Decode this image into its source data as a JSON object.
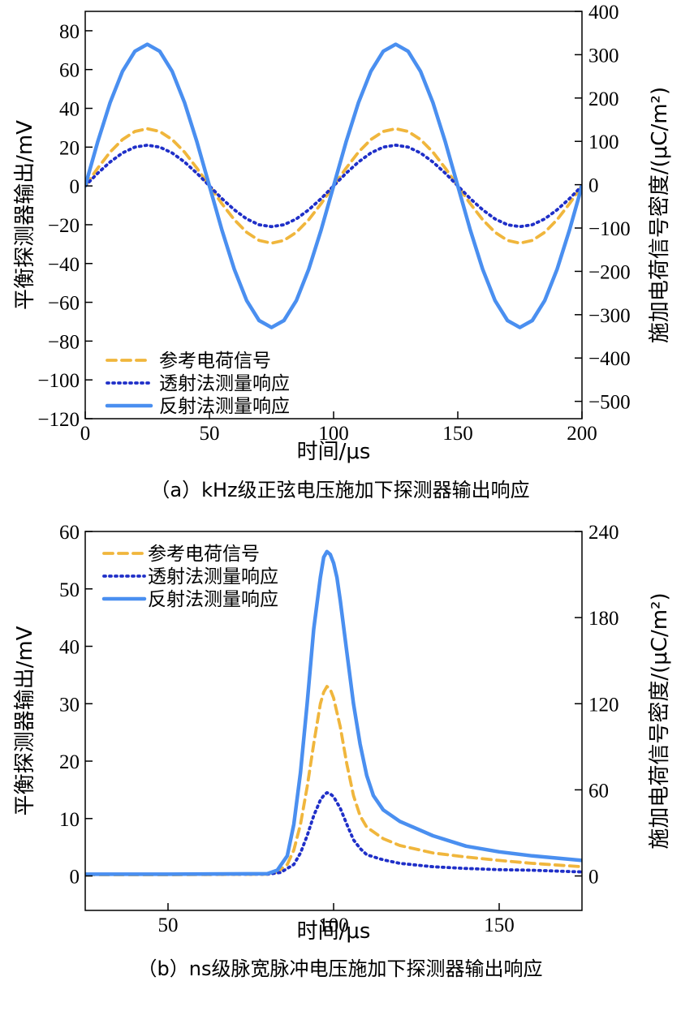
{
  "colors": {
    "reference": "#f0b63c",
    "transmission": "#1f2fc8",
    "reflection": "#4a8ff0"
  },
  "chart_data": [
    {
      "type": "line",
      "caption": "（a）kHz级正弦电压施加下探测器输出响应",
      "xlabel": "时间/μs",
      "ylabel": "平衡探测器输出/mV",
      "y2label": "施加电荷信号密度/(μC/m²)",
      "xlim": [
        0,
        200
      ],
      "ylim": [
        -120,
        90
      ],
      "y2lim": [
        -540,
        400
      ],
      "xticks": [
        0,
        50,
        100,
        150,
        200
      ],
      "yticks": [
        80,
        60,
        40,
        20,
        0,
        -20,
        -40,
        -60,
        -80,
        -100,
        -120
      ],
      "yticklabels": [
        "80",
        "60",
        "40",
        "20",
        "0",
        "−20",
        "−40",
        "−60",
        "−80",
        "−100",
        "−120"
      ],
      "y2ticks": [
        400,
        300,
        200,
        100,
        0,
        -100,
        -200,
        -300,
        -400,
        -500
      ],
      "y2ticklabels": [
        "400",
        "300",
        "200",
        "100",
        "0",
        "−100",
        "−200",
        "−300",
        "−400",
        "−500"
      ],
      "legend_position": "lower-left",
      "series": [
        {
          "name": "参考电荷信号",
          "style": "dashed",
          "axis": "left",
          "x": [
            0,
            5,
            10,
            15,
            20,
            25,
            30,
            35,
            40,
            45,
            50,
            55,
            60,
            65,
            70,
            75,
            80,
            85,
            90,
            95,
            100,
            105,
            110,
            115,
            120,
            125,
            130,
            135,
            140,
            145,
            150,
            155,
            160,
            165,
            170,
            175,
            180,
            185,
            190,
            195,
            200
          ],
          "y": [
            0,
            9.1,
            17.4,
            23.9,
            28.1,
            29.5,
            28.1,
            23.9,
            17.4,
            9.1,
            0,
            -9.1,
            -17.4,
            -23.9,
            -28.1,
            -29.5,
            -28.1,
            -23.9,
            -17.4,
            -9.1,
            0,
            9.1,
            17.4,
            23.9,
            28.1,
            29.5,
            28.1,
            23.9,
            17.4,
            9.1,
            0,
            -9.1,
            -17.4,
            -23.9,
            -28.1,
            -29.5,
            -28.1,
            -23.9,
            -17.4,
            -9.1,
            0
          ]
        },
        {
          "name": "透射法测量响应",
          "style": "dotted",
          "axis": "left",
          "x": [
            0,
            5,
            10,
            15,
            20,
            25,
            30,
            35,
            40,
            45,
            50,
            55,
            60,
            65,
            70,
            75,
            80,
            85,
            90,
            95,
            100,
            105,
            110,
            115,
            120,
            125,
            130,
            135,
            140,
            145,
            150,
            155,
            160,
            165,
            170,
            175,
            180,
            185,
            190,
            195,
            200
          ],
          "y": [
            0,
            6.5,
            12.3,
            17,
            20,
            21,
            20,
            17,
            12.3,
            6.5,
            0,
            -6.5,
            -12.3,
            -17,
            -20,
            -21,
            -20,
            -17,
            -12.3,
            -6.5,
            0,
            6.5,
            12.3,
            17,
            20,
            21,
            20,
            17,
            12.3,
            6.5,
            0,
            -6.5,
            -12.3,
            -17,
            -20,
            -21,
            -20,
            -17,
            -12.3,
            -6.5,
            0
          ]
        },
        {
          "name": "反射法测量响应",
          "style": "solid",
          "axis": "left",
          "x": [
            0,
            5,
            10,
            15,
            20,
            25,
            30,
            35,
            40,
            45,
            50,
            55,
            60,
            65,
            70,
            75,
            80,
            85,
            90,
            95,
            100,
            105,
            110,
            115,
            120,
            125,
            130,
            135,
            140,
            145,
            150,
            155,
            160,
            165,
            170,
            175,
            180,
            185,
            190,
            195,
            200
          ],
          "y": [
            0,
            22.6,
            42.9,
            59.1,
            69.4,
            73,
            69.4,
            59.1,
            42.9,
            22.6,
            0,
            -22.6,
            -42.9,
            -59.1,
            -69.4,
            -73,
            -69.4,
            -59.1,
            -42.9,
            -22.6,
            0,
            22.6,
            42.9,
            59.1,
            69.4,
            73,
            69.4,
            59.1,
            42.9,
            22.6,
            0,
            -22.6,
            -42.9,
            -59.1,
            -69.4,
            -73,
            -69.4,
            -59.1,
            -42.9,
            -22.6,
            0
          ]
        }
      ]
    },
    {
      "type": "line",
      "caption": "（b）ns级脉宽脉冲电压施加下探测器输出响应",
      "xlabel": "时间/μs",
      "ylabel": "平衡探测器输出/mV",
      "y2label": "施加电荷信号密度/(μC/m²)",
      "xlim": [
        25,
        175
      ],
      "ylim": [
        -6,
        60
      ],
      "y2lim": [
        -24,
        240
      ],
      "xticks": [
        50,
        100,
        150
      ],
      "yticks": [
        60,
        50,
        40,
        30,
        20,
        10,
        0
      ],
      "yticklabels": [
        "60",
        "50",
        "40",
        "30",
        "20",
        "10",
        "0"
      ],
      "y2ticks": [
        240,
        180,
        120,
        60,
        0
      ],
      "y2ticklabels": [
        "240",
        "180",
        "120",
        "60",
        "0"
      ],
      "legend_position": "top-left",
      "series": [
        {
          "name": "参考电荷信号",
          "style": "dashed",
          "axis": "left",
          "x": [
            25,
            50,
            80,
            83,
            86,
            88,
            90,
            92,
            94,
            96,
            97,
            98,
            99,
            100,
            102,
            104,
            106,
            108,
            110,
            115,
            120,
            130,
            140,
            150,
            160,
            175
          ],
          "y": [
            0.2,
            0.2,
            0.3,
            0.7,
            2,
            4.5,
            9,
            15.5,
            23,
            30,
            32,
            33,
            32.5,
            31,
            26,
            19.5,
            14,
            10.5,
            8.5,
            6.5,
            5.3,
            4,
            3.3,
            2.7,
            2.2,
            1.6
          ]
        },
        {
          "name": "透射法测量响应",
          "style": "dotted",
          "axis": "left",
          "x": [
            25,
            50,
            80,
            84,
            88,
            90,
            92,
            94,
            96,
            97,
            98,
            99,
            100,
            102,
            104,
            106,
            108,
            110,
            115,
            120,
            130,
            140,
            150,
            160,
            175
          ],
          "y": [
            0.3,
            0.3,
            0.3,
            0.6,
            2,
            4,
            7,
            10.5,
            13.2,
            14,
            14.5,
            14.3,
            13.8,
            11.8,
            9,
            6.3,
            4.8,
            3.7,
            2.8,
            2.2,
            1.6,
            1.3,
            1.1,
            1,
            0.7
          ]
        },
        {
          "name": "反射法测量响应",
          "style": "solid",
          "axis": "left",
          "x": [
            25,
            50,
            80,
            83,
            86,
            88,
            90,
            92,
            94,
            96,
            97,
            98,
            99,
            100,
            101,
            102,
            104,
            106,
            108,
            110,
            112,
            115,
            120,
            130,
            140,
            150,
            160,
            175
          ],
          "y": [
            0.3,
            0.3,
            0.4,
            1,
            3.5,
            9,
            18,
            30,
            43,
            52,
            55.5,
            56.5,
            56,
            54.5,
            52,
            48,
            39,
            30,
            23,
            17.5,
            14,
            11.5,
            9.5,
            7,
            5.2,
            4.2,
            3.5,
            2.7
          ]
        }
      ]
    }
  ]
}
